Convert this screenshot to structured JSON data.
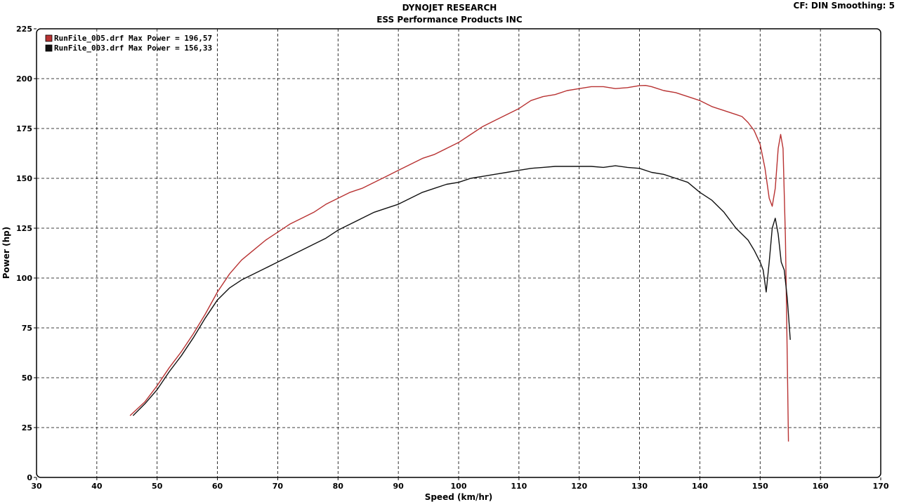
{
  "header": {
    "title": "DYNOJET RESEARCH",
    "subtitle": "ESS Performance Products INC",
    "corner": "CF: DIN  Smoothing: 5"
  },
  "chart_data": {
    "type": "line",
    "title": "DYNOJET RESEARCH",
    "subtitle": "ESS Performance Products INC",
    "xlabel": "Speed (km/hr)",
    "ylabel": "Power (hp)",
    "xlim": [
      30,
      170
    ],
    "ylim": [
      0,
      225
    ],
    "xticks": [
      30,
      40,
      50,
      60,
      70,
      80,
      90,
      100,
      110,
      120,
      130,
      140,
      150,
      160,
      170
    ],
    "yticks": [
      0,
      25,
      50,
      75,
      100,
      125,
      150,
      175,
      200,
      225
    ],
    "grid": true,
    "grid_style": "dashed",
    "legend_position": "top-left",
    "series": [
      {
        "name": "RunFile_005.drf Max Power = 196,57",
        "color": "#b83232",
        "x": [
          45.5,
          48,
          50,
          52,
          54,
          56,
          58,
          60,
          62,
          64,
          66,
          68,
          70,
          72,
          74,
          76,
          78,
          80,
          82,
          84,
          86,
          88,
          90,
          92,
          94,
          96,
          98,
          100,
          102,
          104,
          106,
          108,
          110,
          112,
          114,
          116,
          118,
          120,
          122,
          124,
          126,
          128,
          130,
          131,
          132,
          134,
          136,
          138,
          140,
          142,
          144,
          146,
          147,
          148,
          149,
          150,
          150.8,
          151.5,
          152,
          152.5,
          153,
          153.4,
          153.8,
          154.2,
          154.5,
          154.7
        ],
        "y": [
          31,
          38,
          46,
          55,
          63,
          72,
          82,
          93,
          102,
          109,
          114,
          119,
          123,
          127,
          130,
          133,
          137,
          140,
          143,
          145,
          148,
          151,
          154,
          157,
          160,
          162,
          165,
          168,
          172,
          176,
          179,
          182,
          185,
          189,
          191,
          192,
          194,
          195,
          196,
          196,
          195,
          195.5,
          196.5,
          196.6,
          196,
          194,
          193,
          191,
          189,
          186,
          184,
          182,
          181,
          178,
          174,
          167,
          155,
          140,
          136,
          145,
          165,
          172,
          165,
          120,
          60,
          18
        ]
      },
      {
        "name": "RunFile_003.drf Max Power = 156,33",
        "color": "#111111",
        "x": [
          46,
          48,
          50,
          52,
          54,
          56,
          58,
          60,
          62,
          64,
          66,
          68,
          70,
          72,
          74,
          76,
          78,
          80,
          82,
          84,
          86,
          88,
          90,
          92,
          94,
          96,
          98,
          100,
          102,
          104,
          106,
          108,
          110,
          112,
          114,
          116,
          118,
          120,
          122,
          124,
          126,
          128,
          130,
          132,
          134,
          136,
          138,
          140,
          142,
          144,
          146,
          148,
          149,
          150,
          150.5,
          151,
          151.5,
          152,
          152.5,
          153,
          153.5,
          154,
          154.5,
          155
        ],
        "y": [
          31,
          37,
          44,
          53,
          61,
          70,
          80,
          89,
          95,
          99,
          102,
          105,
          108,
          111,
          114,
          117,
          120,
          124,
          127,
          130,
          133,
          135,
          137,
          140,
          143,
          145,
          147,
          148,
          150,
          151,
          152,
          153,
          154,
          155,
          155.5,
          156,
          156,
          156,
          156,
          155.5,
          156.3,
          155.5,
          155,
          153,
          152,
          150,
          148,
          143,
          139,
          133,
          125,
          119,
          114,
          108,
          104,
          93,
          108,
          125,
          130,
          122,
          108,
          104,
          90,
          69
        ]
      }
    ]
  }
}
